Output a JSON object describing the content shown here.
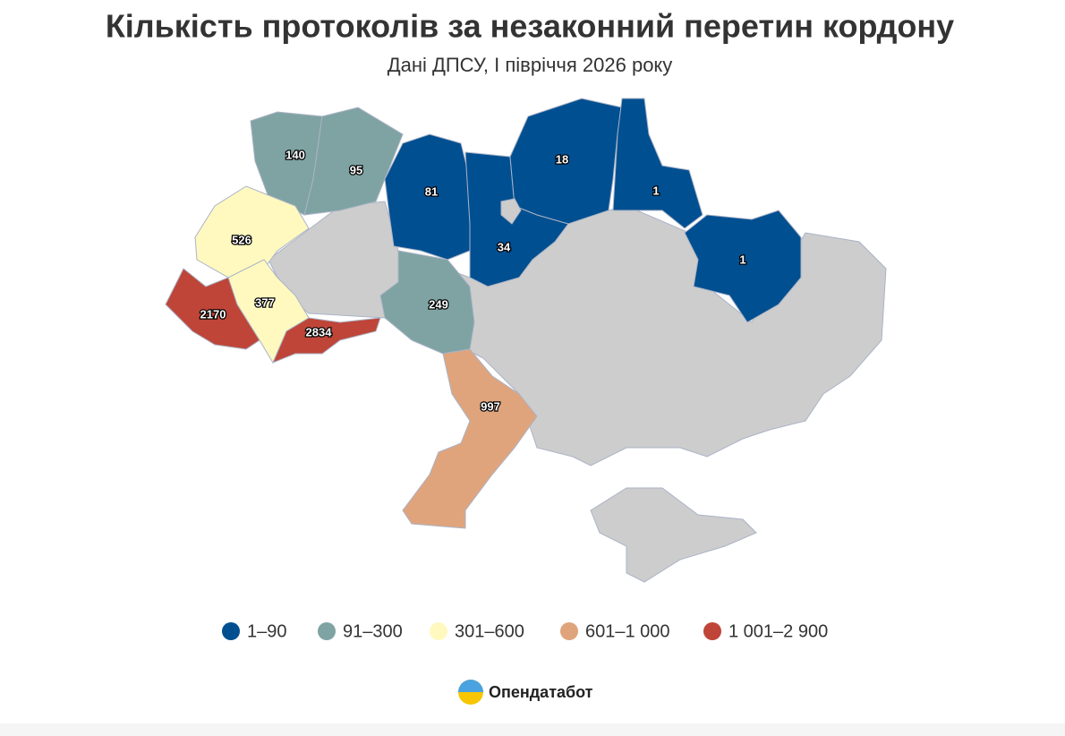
{
  "title": "Кількість протоколів за незаконний перетин кордону",
  "subtitle": "Дані ДПСУ, І півріччя 2026 року",
  "regions": [
    {
      "value": 140,
      "color": "#7fa3a3"
    },
    {
      "value": 95,
      "color": "#7fa3a3"
    },
    {
      "value": 526,
      "color": "#fff9bf"
    },
    {
      "value": 377,
      "color": "#fff9bf"
    },
    {
      "value": 2170,
      "color": "#bf4538"
    },
    {
      "value": 2834,
      "color": "#bf4538"
    },
    {
      "value": 81,
      "color": "#004f91"
    },
    {
      "value": 34,
      "color": "#004f91"
    },
    {
      "value": 18,
      "color": "#004f91"
    },
    {
      "value": 1,
      "color": "#004f91"
    },
    {
      "value": 1,
      "color": "#004f91"
    },
    {
      "value": 249,
      "color": "#7fa3a3"
    },
    {
      "value": 997,
      "color": "#e0a47c"
    }
  ],
  "legend": [
    {
      "label": "1–90",
      "color": "#004f91"
    },
    {
      "label": "91–300",
      "color": "#7fa3a3"
    },
    {
      "label": "301–600",
      "color": "#fff9bf"
    },
    {
      "label": "601–1 000",
      "color": "#e0a47c"
    },
    {
      "label": "1 001–2 900",
      "color": "#bf4538"
    }
  ],
  "brand": "Опендатабот"
}
